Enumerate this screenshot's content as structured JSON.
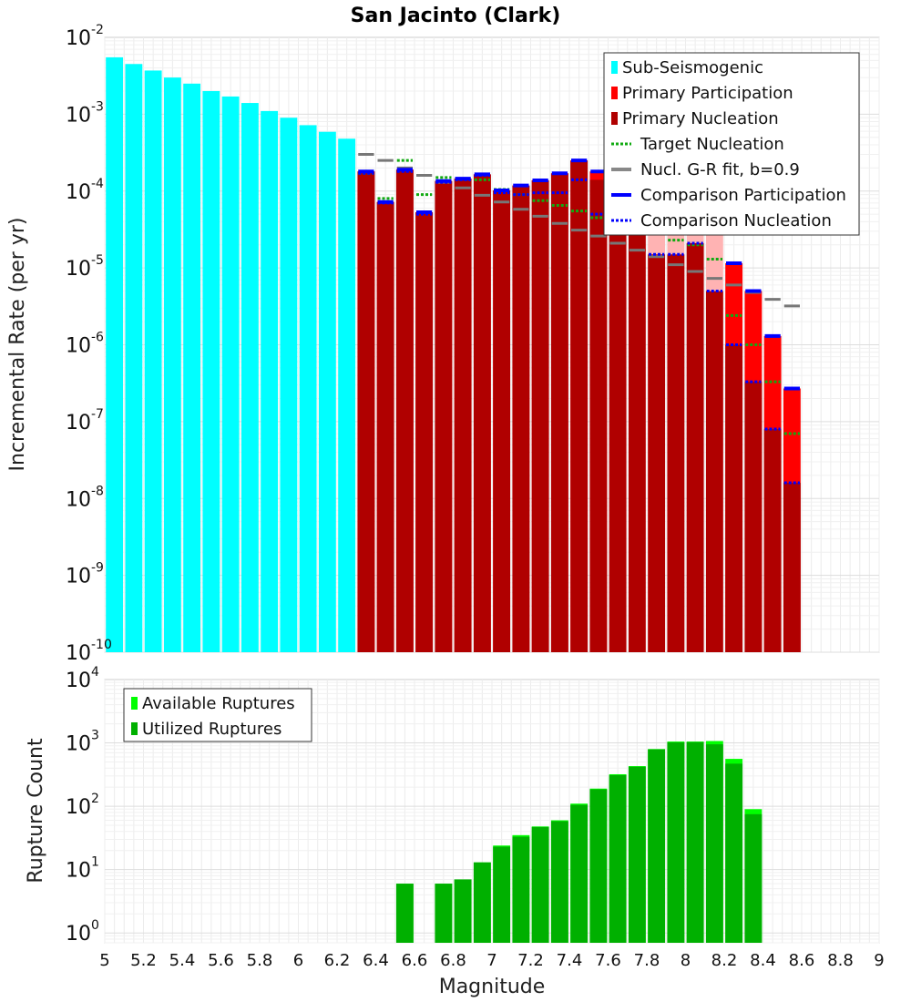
{
  "chart_data": [
    {
      "type": "bar",
      "title": "San Jacinto (Clark)",
      "xlabel": "",
      "ylabel": "Incremental Rate (per yr)",
      "yscale": "log",
      "ylim": [
        1e-10,
        0.01
      ],
      "xlim": [
        5,
        9
      ],
      "bin_width": 0.1,
      "legend_position": "top-right",
      "legend": [
        {
          "label": "Sub-Seismogenic",
          "color": "#00ffff",
          "style": "bar"
        },
        {
          "label": "Primary Participation",
          "color": "#ff0000",
          "style": "bar"
        },
        {
          "label": "Primary Nucleation",
          "color": "#b00000",
          "style": "bar"
        },
        {
          "label": "Target Nucleation",
          "color": "#11aa11",
          "style": "dotted"
        },
        {
          "label": "Nucl. G-R fit, b=0.9",
          "color": "#888888",
          "style": "solid"
        },
        {
          "label": "Comparison Participation",
          "color": "#0000ff",
          "style": "solid"
        },
        {
          "label": "Comparison Nucleation",
          "color": "#0000ff",
          "style": "dotted"
        }
      ],
      "series": [
        {
          "name": "Sub-Seismogenic",
          "x": [
            5.05,
            5.15,
            5.25,
            5.35,
            5.45,
            5.55,
            5.65,
            5.75,
            5.85,
            5.95,
            6.05,
            6.15,
            6.25
          ],
          "values": [
            0.0055,
            0.0045,
            0.0037,
            0.003,
            0.0025,
            0.002,
            0.0017,
            0.0014,
            0.0011,
            0.0009,
            0.00072,
            0.00059,
            0.00048
          ]
        },
        {
          "name": "Primary Participation",
          "x": [
            6.35,
            6.45,
            6.55,
            6.65,
            6.75,
            6.85,
            6.95,
            7.05,
            7.15,
            7.25,
            7.35,
            7.45,
            7.55,
            7.65,
            7.75,
            7.85,
            7.95,
            8.05,
            8.15,
            8.25,
            8.35,
            8.45,
            8.55
          ],
          "values": [
            0.00018,
            7.2e-05,
            0.00019,
            5.3e-05,
            0.000135,
            0.000145,
            0.000165,
            0.000102,
            0.000118,
            0.000138,
            0.00017,
            0.00025,
            0.00018,
            0.00016,
            0.00015,
            0.00011,
            9e-05,
            7e-05,
            4.5e-05,
            1.15e-05,
            5e-06,
            1.3e-06,
            2.7e-07
          ]
        },
        {
          "name": "Primary Nucleation",
          "x": [
            6.35,
            6.45,
            6.55,
            6.65,
            6.75,
            6.85,
            6.95,
            7.05,
            7.15,
            7.25,
            7.35,
            7.45,
            7.55,
            7.65,
            7.75,
            7.85,
            7.95,
            8.05,
            8.15,
            8.25,
            8.35,
            8.45,
            8.55
          ],
          "values": [
            0.00018,
            7.2e-05,
            0.00019,
            5.3e-05,
            0.000135,
            0.000145,
            0.000165,
            0.000102,
            0.000118,
            0.000138,
            0.00017,
            0.00025,
            0.00014,
            4.5e-05,
            3e-05,
            1.5e-05,
            1.5e-05,
            2.1e-05,
            5e-06,
            1e-06,
            3.3e-07,
            8e-08,
            1.6e-08
          ]
        },
        {
          "name": "Target Nucleation",
          "x": [
            6.35,
            6.45,
            6.55,
            6.65,
            6.75,
            6.85,
            6.95,
            7.05,
            7.15,
            7.25,
            7.35,
            7.45,
            7.55,
            7.65,
            7.75,
            7.85,
            7.95,
            8.05,
            8.15,
            8.25,
            8.35,
            8.45,
            8.55
          ],
          "values": [
            0.00017,
            8e-05,
            0.00025,
            9e-05,
            0.00015,
            0.00014,
            0.00014,
            0.000105,
            9e-05,
            7.5e-05,
            6.5e-05,
            5.5e-05,
            4.5e-05,
            4e-05,
            3.5e-05,
            3e-05,
            2.3e-05,
            2e-05,
            1.3e-05,
            2.4e-06,
            1e-06,
            3.3e-07,
            7e-08
          ]
        },
        {
          "name": "Nucl. G-R fit, b=0.9",
          "x": [
            6.35,
            6.45,
            6.55,
            6.65,
            6.75,
            6.85,
            6.95,
            7.05,
            7.15,
            7.25,
            7.35,
            7.45,
            7.55,
            7.65,
            7.75,
            7.85,
            7.95,
            8.05,
            8.15,
            8.25,
            8.35,
            8.45,
            8.55
          ],
          "values": [
            0.0003,
            0.00025,
            0.0002,
            0.00016,
            0.00013,
            0.00011,
            8.8e-05,
            7.2e-05,
            5.8e-05,
            4.7e-05,
            3.8e-05,
            3.1e-05,
            2.6e-05,
            2.1e-05,
            1.7e-05,
            1.4e-05,
            1.1e-05,
            9e-06,
            7.3e-06,
            6e-06,
            4.8e-06,
            3.9e-06,
            3.2e-06
          ]
        },
        {
          "name": "Comparison Participation",
          "x": [
            6.35,
            6.45,
            6.55,
            6.65,
            6.75,
            6.85,
            6.95,
            7.05,
            7.15,
            7.25,
            7.35,
            7.45,
            7.55,
            7.65,
            7.75,
            7.85,
            7.95,
            8.05,
            8.15,
            8.25,
            8.35,
            8.45,
            8.55
          ],
          "values": [
            0.00018,
            7.2e-05,
            0.00019,
            5.3e-05,
            0.000135,
            0.000145,
            0.000165,
            0.000102,
            0.000118,
            0.000138,
            0.00017,
            0.00025,
            0.00018,
            0.00016,
            0.00015,
            0.00011,
            0.0001,
            7e-05,
            4.5e-05,
            1.15e-05,
            5e-06,
            1.3e-06,
            2.7e-07
          ]
        },
        {
          "name": "Comparison Nucleation",
          "x": [
            6.35,
            6.45,
            6.55,
            6.65,
            6.75,
            6.85,
            6.95,
            7.05,
            7.15,
            7.25,
            7.35,
            7.45,
            7.55,
            7.65,
            7.75,
            7.85,
            7.95,
            8.05,
            8.15,
            8.25,
            8.35,
            8.45,
            8.55
          ],
          "values": [
            0.00017,
            7e-05,
            0.00018,
            5e-05,
            0.00013,
            0.00014,
            0.00016,
            9.5e-05,
            9e-05,
            9.5e-05,
            9.5e-05,
            0.00014,
            5e-05,
            4.5e-05,
            3e-05,
            1.5e-05,
            1.5e-05,
            2.1e-05,
            5e-06,
            1e-06,
            3.3e-07,
            8e-08,
            1.6e-08
          ]
        }
      ]
    },
    {
      "type": "bar",
      "title": "",
      "xlabel": "Magnitude",
      "ylabel": "Rupture Count",
      "yscale": "log",
      "ylim": [
        0.7,
        10000
      ],
      "xlim": [
        5,
        9
      ],
      "bin_width": 0.1,
      "x_ticks": [
        "5",
        "5.2",
        "5.4",
        "5.6",
        "5.8",
        "6",
        "6.2",
        "6.4",
        "6.6",
        "6.8",
        "7",
        "7.2",
        "7.4",
        "7.6",
        "7.8",
        "8",
        "8.2",
        "8.4",
        "8.6",
        "8.8",
        "9"
      ],
      "legend_position": "top-left",
      "legend": [
        {
          "label": "Available Ruptures",
          "color": "#00ff00",
          "style": "bar"
        },
        {
          "label": "Utilized Ruptures",
          "color": "#00b000",
          "style": "bar"
        }
      ],
      "series": [
        {
          "name": "Available Ruptures",
          "x": [
            6.55,
            6.75,
            6.85,
            6.95,
            7.05,
            7.15,
            7.25,
            7.35,
            7.45,
            7.55,
            7.65,
            7.75,
            7.85,
            7.95,
            8.05,
            8.15,
            8.25,
            8.35
          ],
          "values": [
            6,
            6,
            7,
            13,
            24,
            35,
            48,
            60,
            110,
            190,
            320,
            430,
            800,
            1050,
            1050,
            1070,
            560,
            90
          ]
        },
        {
          "name": "Utilized Ruptures",
          "x": [
            6.55,
            6.75,
            6.85,
            6.95,
            7.05,
            7.15,
            7.25,
            7.35,
            7.45,
            7.55,
            7.65,
            7.75,
            7.85,
            7.95,
            8.05,
            8.15,
            8.25,
            8.35
          ],
          "values": [
            6,
            6,
            7,
            13,
            23,
            33,
            47,
            58,
            105,
            185,
            310,
            420,
            790,
            1020,
            1030,
            950,
            470,
            75
          ]
        }
      ]
    }
  ]
}
